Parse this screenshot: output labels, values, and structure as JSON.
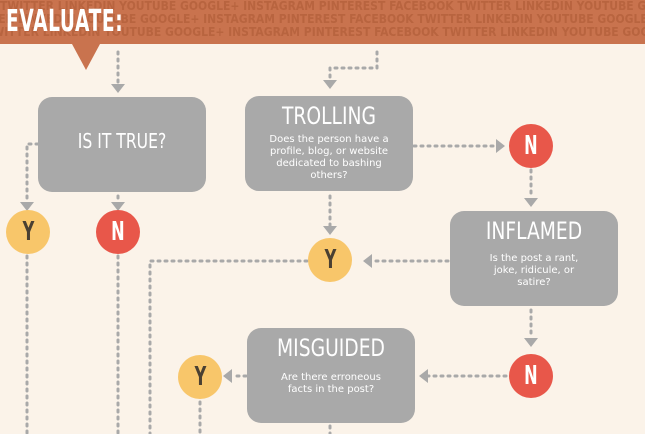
{
  "header": {
    "title": "EVALUATE:",
    "background_words": "TWITTER  LINKEDIN  YOUTUBE  GOOGLE+  INSTAGRAM  PINTEREST  FACEBOOK  TWITTER  LINKEDIN  YOUTUBE  GOOGLE+  INSTAGRAM  PINTEREST  FACEBOOK  TWITTER  LINKEDIN"
  },
  "nodes": {
    "is_it_true": {
      "heading": "IS IT TRUE?"
    },
    "trolling": {
      "heading": "TROLLING",
      "question": "Does the person have a profile, blog, or website dedicated to bashing others?"
    },
    "inflamed": {
      "heading": "INFLAMED",
      "question": "Is the post a rant, joke, ridicule, or satire?"
    },
    "misguided": {
      "heading": "MISGUIDED",
      "question": "Are there erroneous facts in the post?"
    }
  },
  "answers": {
    "yes": "Y",
    "no": "N"
  },
  "colors": {
    "banner": "#c9734e",
    "box": "#a9a9a9",
    "no": "#e8574a",
    "yes": "#f8c66a",
    "background": "#fbf3e9",
    "dots": "#a9a9a9"
  }
}
